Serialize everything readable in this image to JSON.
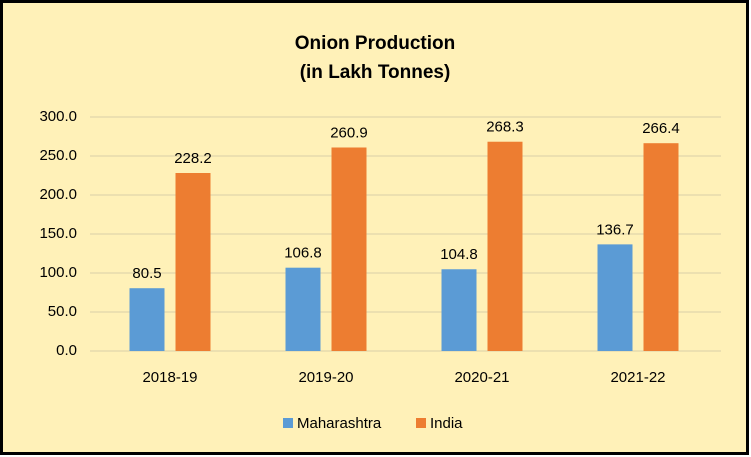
{
  "chart_data": {
    "type": "bar",
    "title": "Onion Production",
    "subtitle": "(in Lakh Tonnes)",
    "categories": [
      "2018-19",
      "2019-20",
      "2020-21",
      "2021-22"
    ],
    "series": [
      {
        "name": "Maharashtra",
        "color": "#5b9bd5",
        "values": [
          80.5,
          106.8,
          104.8,
          136.7
        ]
      },
      {
        "name": "India",
        "color": "#ed7d31",
        "values": [
          228.2,
          260.9,
          268.3,
          266.4
        ]
      }
    ],
    "ylim": [
      0,
      300
    ],
    "yticks": [
      {
        "value": 0,
        "label": "0.0"
      },
      {
        "value": 50,
        "label": "50.0"
      },
      {
        "value": 100,
        "label": "100.0"
      },
      {
        "value": 150,
        "label": "150.0"
      },
      {
        "value": 200,
        "label": "200.0"
      },
      {
        "value": 250,
        "label": "250.0"
      },
      {
        "value": 300,
        "label": "300.0"
      }
    ],
    "grid": true,
    "legend": "bottom"
  }
}
